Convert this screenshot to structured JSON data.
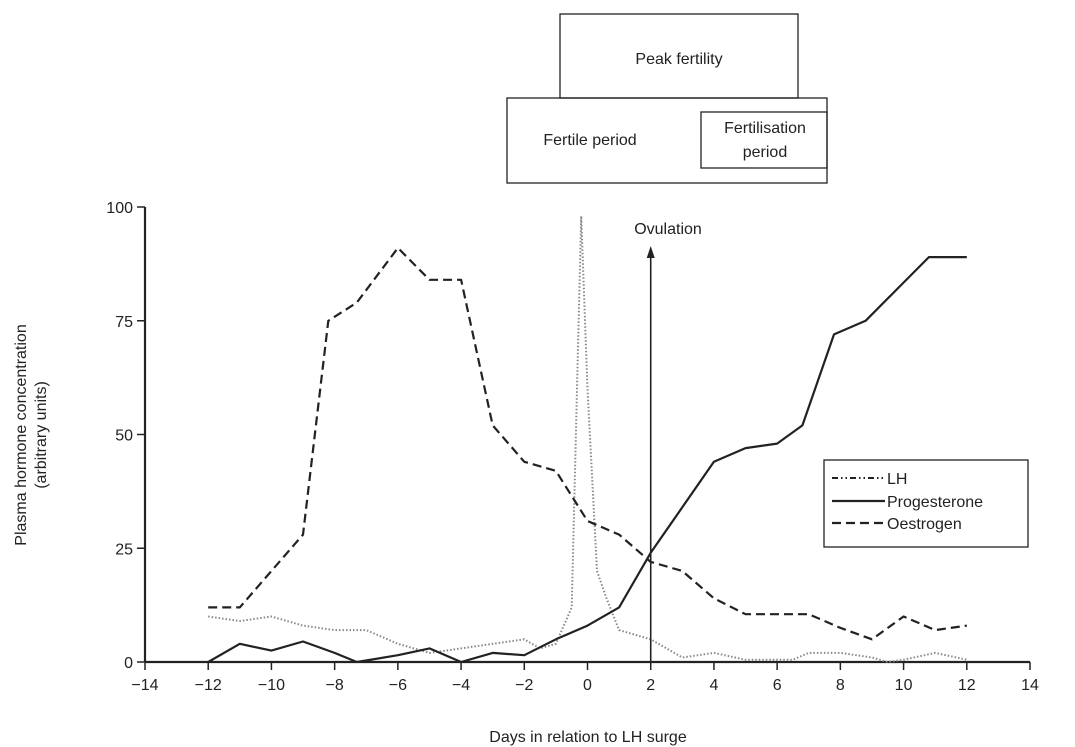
{
  "chart_data": {
    "type": "line",
    "xlabel": "Days in relation to LH surge",
    "ylabel_line1": "Plasma hormone concentration",
    "ylabel_line2": "(arbitrary units)",
    "xlim": [
      -14,
      14
    ],
    "ylim": [
      0,
      100
    ],
    "xticks": [
      -14,
      -12,
      -10,
      -8,
      -6,
      -4,
      -2,
      0,
      2,
      4,
      6,
      8,
      10,
      12,
      14
    ],
    "xtick_labels": [
      "−14",
      "−12",
      "−10",
      "−8",
      "−6",
      "−4",
      "−2",
      "0",
      "2",
      "4",
      "6",
      "8",
      "10",
      "12",
      "14"
    ],
    "yticks": [
      0,
      25,
      50,
      75,
      100
    ],
    "ytick_labels": [
      "0",
      "25",
      "50",
      "75",
      "100"
    ],
    "grid": false,
    "legend_position": "right",
    "series": [
      {
        "name": "LH",
        "style": "dotted",
        "x": [
          -12,
          -11,
          -10,
          -9,
          -8,
          -7,
          -6,
          -5,
          -4,
          -3,
          -2,
          -1.5,
          -1,
          -0.5,
          -0.2,
          0,
          0.3,
          0.6,
          1,
          2,
          3,
          4,
          5,
          6,
          6.5,
          7,
          8,
          9,
          9.5,
          10,
          11,
          12
        ],
        "y": [
          10,
          9,
          10,
          8,
          7,
          7,
          4,
          2,
          3,
          4,
          5,
          3,
          4,
          12,
          98,
          60,
          20,
          14,
          7,
          5,
          1,
          2,
          0.5,
          0.5,
          0.5,
          2,
          2,
          1,
          0,
          0.5,
          2,
          0.5
        ]
      },
      {
        "name": "Progesterone",
        "style": "solid",
        "x": [
          -12,
          -11,
          -10,
          -9,
          -8,
          -7.3,
          -6,
          -5,
          -4,
          -3,
          -2,
          -1,
          0,
          1,
          2,
          3,
          4,
          5,
          6,
          6.8,
          7.8,
          8.8,
          9.8,
          10.8,
          12
        ],
        "y": [
          0,
          4,
          2.5,
          4.5,
          2,
          0,
          1.5,
          3,
          0,
          2,
          1.5,
          5,
          8,
          12,
          24,
          34,
          44,
          47,
          48,
          52,
          72,
          75,
          82,
          89,
          89
        ]
      },
      {
        "name": "Oestrogen",
        "style": "dashed",
        "x": [
          -12,
          -11,
          -10,
          -9,
          -8.2,
          -7.3,
          -6,
          -5,
          -4,
          -3,
          -2,
          -1,
          0,
          1,
          2,
          3,
          4,
          5,
          6,
          7,
          8,
          9,
          10,
          11,
          12
        ],
        "y": [
          12,
          12,
          20,
          28,
          75,
          79,
          91,
          84,
          84,
          52,
          44,
          42,
          31,
          28,
          22,
          20,
          14,
          10.5,
          10.5,
          10.5,
          7.5,
          5,
          10,
          7,
          8
        ]
      }
    ],
    "annotations": {
      "ovulation_label": "Ovulation",
      "ovulation_day": 2,
      "boxes": {
        "peak_fertility": "Peak fertility",
        "fertile_period": "Fertile period",
        "fertilisation_line1": "Fertilisation",
        "fertilisation_line2": "period"
      }
    }
  }
}
